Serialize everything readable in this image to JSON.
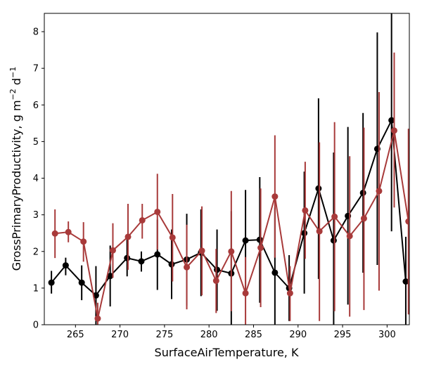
{
  "chart_data": {
    "type": "scatter",
    "xlabel": "SurfaceAirTemperature,  K",
    "ylabel_main": "GrossPrimaryProductivity,  g m",
    "ylabel_sup1": "−2",
    "ylabel_mid": " d",
    "ylabel_sup2": "−1",
    "xlim": [
      261.5,
      302.5
    ],
    "ylim": [
      0,
      8.5
    ],
    "xticks": [
      265,
      270,
      275,
      280,
      285,
      290,
      295,
      300
    ],
    "yticks": [
      0,
      1,
      2,
      3,
      4,
      5,
      6,
      7,
      8
    ],
    "grid": false,
    "series": [
      {
        "color": "#000000",
        "points": [
          {
            "x": 262.3,
            "y": 1.15,
            "lo": 0.85,
            "hi": 1.47
          },
          {
            "x": 263.9,
            "y": 1.62,
            "lo": 1.35,
            "hi": 1.83
          },
          {
            "x": 265.7,
            "y": 1.15,
            "lo": 0.67,
            "hi": 1.62
          },
          {
            "x": 267.3,
            "y": 0.8,
            "lo": 0.0,
            "hi": 1.6
          },
          {
            "x": 268.9,
            "y": 1.33,
            "lo": 0.5,
            "hi": 2.16
          },
          {
            "x": 270.8,
            "y": 1.82,
            "lo": 1.32,
            "hi": 2.4
          },
          {
            "x": 272.4,
            "y": 1.73,
            "lo": 1.45,
            "hi": 2.0
          },
          {
            "x": 274.2,
            "y": 1.92,
            "lo": 0.95,
            "hi": 2.87
          },
          {
            "x": 275.8,
            "y": 1.65,
            "lo": 0.7,
            "hi": 2.6
          },
          {
            "x": 277.5,
            "y": 1.78,
            "lo": 0.52,
            "hi": 3.03
          },
          {
            "x": 279.1,
            "y": 1.97,
            "lo": 0.78,
            "hi": 3.15
          },
          {
            "x": 280.9,
            "y": 1.5,
            "lo": 0.38,
            "hi": 2.6
          },
          {
            "x": 282.5,
            "y": 1.4,
            "lo": 0.0,
            "hi": 3.1
          },
          {
            "x": 284.1,
            "y": 2.3,
            "lo": 0.92,
            "hi": 3.68
          },
          {
            "x": 285.7,
            "y": 2.32,
            "lo": 0.6,
            "hi": 4.03
          },
          {
            "x": 287.4,
            "y": 1.42,
            "lo": 0.0,
            "hi": 3.2
          },
          {
            "x": 289.0,
            "y": 1.0,
            "lo": 0.1,
            "hi": 1.9
          },
          {
            "x": 290.7,
            "y": 2.5,
            "lo": 0.85,
            "hi": 4.18
          },
          {
            "x": 292.3,
            "y": 3.72,
            "lo": 1.25,
            "hi": 6.18
          },
          {
            "x": 294.0,
            "y": 2.3,
            "lo": 0.0,
            "hi": 4.7
          },
          {
            "x": 295.6,
            "y": 2.97,
            "lo": 0.55,
            "hi": 5.4
          },
          {
            "x": 297.3,
            "y": 3.6,
            "lo": 1.42,
            "hi": 5.78
          },
          {
            "x": 298.9,
            "y": 4.8,
            "lo": 1.63,
            "hi": 7.98
          },
          {
            "x": 300.5,
            "y": 5.58,
            "lo": 2.55,
            "hi": 8.5
          },
          {
            "x": 302.1,
            "y": 1.18,
            "lo": 0.0,
            "hi": 2.4
          }
        ]
      },
      {
        "color": "#a83a3a",
        "points": [
          {
            "x": 262.7,
            "y": 2.49,
            "lo": 1.82,
            "hi": 3.15
          },
          {
            "x": 264.2,
            "y": 2.53,
            "lo": 2.25,
            "hi": 2.82
          },
          {
            "x": 265.9,
            "y": 2.27,
            "lo": 1.72,
            "hi": 2.8
          },
          {
            "x": 267.5,
            "y": 0.17,
            "lo": 0.0,
            "hi": 0.6
          },
          {
            "x": 269.2,
            "y": 2.03,
            "lo": 1.28,
            "hi": 2.77
          },
          {
            "x": 270.9,
            "y": 2.4,
            "lo": 1.5,
            "hi": 3.3
          },
          {
            "x": 272.5,
            "y": 2.85,
            "lo": 2.35,
            "hi": 3.3
          },
          {
            "x": 274.2,
            "y": 3.08,
            "lo": 2.05,
            "hi": 4.12
          },
          {
            "x": 275.9,
            "y": 2.38,
            "lo": 1.18,
            "hi": 3.57
          },
          {
            "x": 277.5,
            "y": 1.57,
            "lo": 0.42,
            "hi": 2.73
          },
          {
            "x": 279.2,
            "y": 2.02,
            "lo": 0.8,
            "hi": 3.23
          },
          {
            "x": 280.8,
            "y": 1.2,
            "lo": 0.32,
            "hi": 2.07
          },
          {
            "x": 282.5,
            "y": 2.0,
            "lo": 0.37,
            "hi": 3.65
          },
          {
            "x": 284.1,
            "y": 0.86,
            "lo": 0.0,
            "hi": 1.85
          },
          {
            "x": 285.8,
            "y": 2.1,
            "lo": 0.48,
            "hi": 3.72
          },
          {
            "x": 287.4,
            "y": 3.5,
            "lo": 1.83,
            "hi": 5.17
          },
          {
            "x": 289.1,
            "y": 0.86,
            "lo": 0.1,
            "hi": 1.6
          },
          {
            "x": 290.8,
            "y": 3.12,
            "lo": 1.8,
            "hi": 4.45
          },
          {
            "x": 292.4,
            "y": 2.55,
            "lo": 0.1,
            "hi": 4.98
          },
          {
            "x": 294.1,
            "y": 2.95,
            "lo": 0.37,
            "hi": 5.53
          },
          {
            "x": 295.8,
            "y": 2.42,
            "lo": 0.22,
            "hi": 4.6
          },
          {
            "x": 297.4,
            "y": 2.9,
            "lo": 0.4,
            "hi": 5.38
          },
          {
            "x": 299.1,
            "y": 3.65,
            "lo": 0.93,
            "hi": 6.35
          },
          {
            "x": 300.8,
            "y": 5.3,
            "lo": 3.2,
            "hi": 7.43
          },
          {
            "x": 302.4,
            "y": 2.82,
            "lo": 0.28,
            "hi": 5.35
          }
        ]
      }
    ]
  }
}
